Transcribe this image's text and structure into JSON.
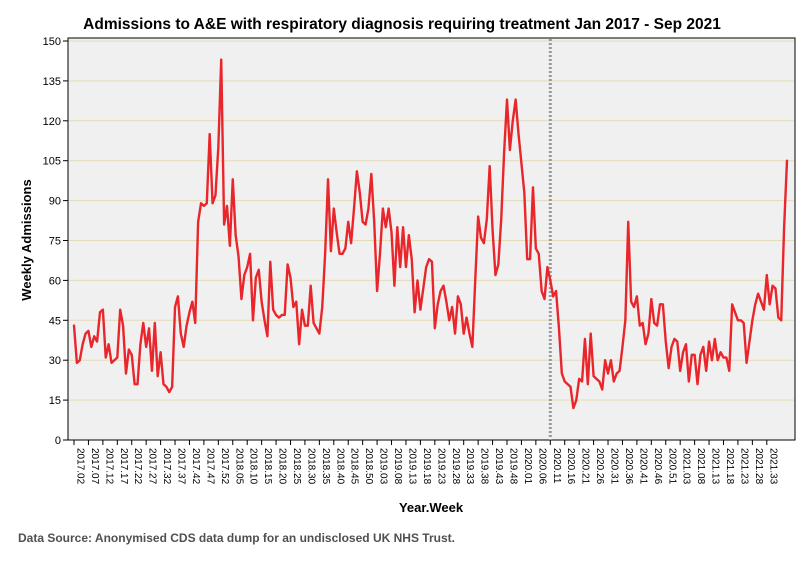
{
  "chart_data": {
    "type": "line",
    "title": "Admissions to A&E with respiratory diagnosis requiring treatment Jan 2017 - Sep 2021",
    "xlabel": "Year.Week",
    "ylabel": "Weekly Admissions",
    "ylim": [
      0,
      150
    ],
    "yticks": [
      0,
      15,
      30,
      45,
      60,
      75,
      90,
      105,
      120,
      135,
      150
    ],
    "x_tick_labels": [
      "2017.02",
      "2017.07",
      "2017.12",
      "2017.17",
      "2017.22",
      "2017.27",
      "2017.32",
      "2017.37",
      "2017.42",
      "2017.47",
      "2017.52",
      "2018.05",
      "2018.10",
      "2018.15",
      "2018.20",
      "2018.25",
      "2018.30",
      "2018.35",
      "2018.40",
      "2018.45",
      "2018.50",
      "2019.03",
      "2019.08",
      "2019.13",
      "2019.18",
      "2019.23",
      "2019.28",
      "2019.33",
      "2019.38",
      "2019.43",
      "2019.48",
      "2020.01",
      "2020.06",
      "2020.11",
      "2020.16",
      "2020.21",
      "2020.26",
      "2020.31",
      "2020.36",
      "2020.41",
      "2020.46",
      "2020.51",
      "2021.03",
      "2021.08",
      "2021.13",
      "2021.18",
      "2021.23",
      "2021.28",
      "2021.33"
    ],
    "grid": {
      "horizontal": true,
      "vertical": false
    },
    "reference_line": {
      "x": "2020.11",
      "style": "dotted",
      "color": "#999999"
    },
    "series": [
      {
        "color": "#e8262b",
        "values": [
          43,
          29,
          30,
          36,
          40,
          41,
          35,
          39,
          37,
          48,
          49,
          31,
          36,
          29,
          30,
          31,
          49,
          43,
          25,
          34,
          32,
          21,
          21,
          36,
          44,
          35,
          42,
          26,
          44,
          24,
          33,
          21,
          20,
          18,
          20,
          50,
          54,
          40,
          35,
          43,
          48,
          52,
          44,
          82,
          89,
          88,
          89,
          115,
          89,
          92,
          110,
          143,
          81,
          88,
          73,
          98,
          77,
          69,
          53,
          62,
          65,
          70,
          45,
          61,
          64,
          52,
          45,
          39,
          67,
          49,
          47,
          46,
          47,
          47,
          66,
          61,
          50,
          52,
          36,
          49,
          43,
          43,
          58,
          44,
          42,
          40,
          50,
          70,
          98,
          71,
          87,
          78,
          70,
          70,
          72,
          82,
          74,
          87,
          101,
          93,
          82,
          81,
          87,
          100,
          82,
          56,
          70,
          87,
          80,
          87,
          78,
          58,
          80,
          65,
          80,
          65,
          77,
          68,
          48,
          60,
          49,
          57,
          65,
          68,
          67,
          42,
          51,
          56,
          58,
          52,
          45,
          50,
          40,
          54,
          51,
          40,
          46,
          40,
          35,
          60,
          84,
          76,
          74,
          83,
          103,
          79,
          62,
          66,
          83,
          108,
          128,
          109,
          120,
          128,
          115,
          104,
          93,
          68,
          68,
          95,
          72,
          70,
          56,
          53,
          65,
          60,
          54,
          56,
          42,
          25,
          22,
          21,
          20,
          12,
          15,
          23,
          22,
          38,
          21,
          40,
          24,
          23,
          22,
          19,
          30,
          25,
          30,
          22,
          25,
          26,
          35,
          45,
          82,
          52,
          50,
          54,
          43,
          44,
          36,
          40,
          53,
          44,
          43,
          51,
          51,
          37,
          27,
          35,
          38,
          37,
          26,
          33,
          36,
          22,
          32,
          32,
          21,
          32,
          35,
          26,
          37,
          30,
          38,
          30,
          33,
          31,
          31,
          26,
          51,
          48,
          45,
          45,
          44,
          29,
          37,
          45,
          51,
          55,
          52,
          49,
          62,
          51,
          58,
          57,
          46,
          45,
          80,
          105
        ]
      }
    ]
  },
  "footer": {
    "source": "Data Source: Anonymised CDS data dump for an undisclosed UK NHS Trust."
  }
}
